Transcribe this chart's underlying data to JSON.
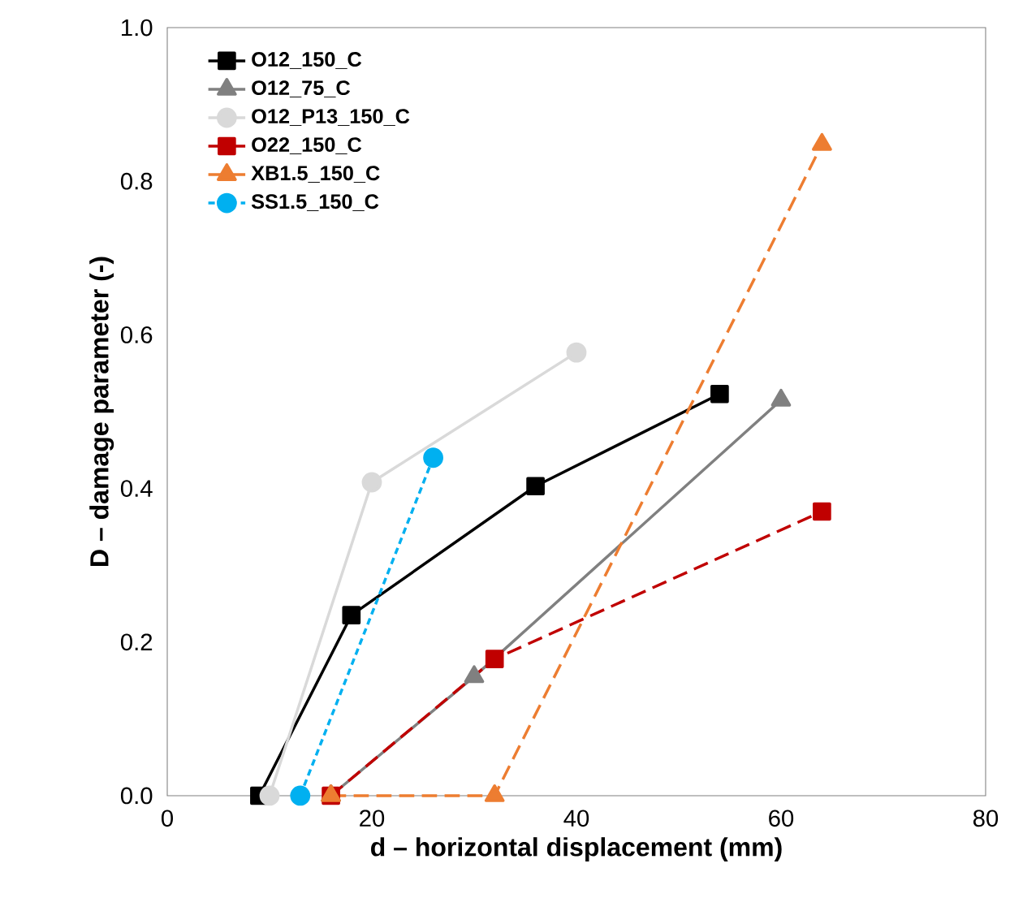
{
  "chart_data": {
    "type": "line",
    "xlabel": "d – horizontal displacement (mm)",
    "ylabel": "D – damage parameter (-)",
    "xlim": [
      0,
      80
    ],
    "xticks": [
      0,
      20,
      40,
      60,
      80
    ],
    "ylim": [
      0,
      1
    ],
    "yticks": [
      {
        "value": 0,
        "label": "0.0"
      },
      {
        "value": 0.2,
        "label": "0.2"
      },
      {
        "value": 0.4,
        "label": "0.4"
      },
      {
        "value": 0.6,
        "label": "0.6"
      },
      {
        "value": 0.8,
        "label": "0.8"
      },
      {
        "value": 1,
        "label": "1.0"
      }
    ],
    "grid": false,
    "legend": "top left",
    "series": [
      {
        "name": "O12_150_C",
        "color": "#000000",
        "marker": "square",
        "line_style": "solid",
        "x": [
          9,
          18,
          36,
          54
        ],
        "values": [
          0,
          0.235,
          0.403,
          0.523
        ]
      },
      {
        "name": "O12_75_C",
        "color": "#808080",
        "marker": "triangle",
        "line_style": "solid",
        "x": [
          16,
          30,
          60
        ],
        "values": [
          0,
          0.155,
          0.515
        ]
      },
      {
        "name": "O12_P13_150_C",
        "color": "#d9d9d9",
        "marker": "circle",
        "line_style": "solid",
        "x": [
          10,
          20,
          40
        ],
        "values": [
          0,
          0.408,
          0.577
        ]
      },
      {
        "name": "O22_150_C",
        "color": "#c00000",
        "marker": "square",
        "line_style": "dashed",
        "x": [
          16,
          32,
          64
        ],
        "values": [
          0,
          0.178,
          0.37
        ]
      },
      {
        "name": "XB1.5_150_C",
        "color": "#ed7d31",
        "marker": "triangle",
        "line_style": "dashed",
        "x": [
          16,
          32,
          64
        ],
        "values": [
          0,
          0,
          0.848
        ]
      },
      {
        "name": "SS1.5_150_C",
        "color": "#00b0f0",
        "marker": "circle",
        "line_style": "dotted",
        "x": [
          13,
          26
        ],
        "values": [
          0,
          0.44
        ]
      }
    ]
  }
}
